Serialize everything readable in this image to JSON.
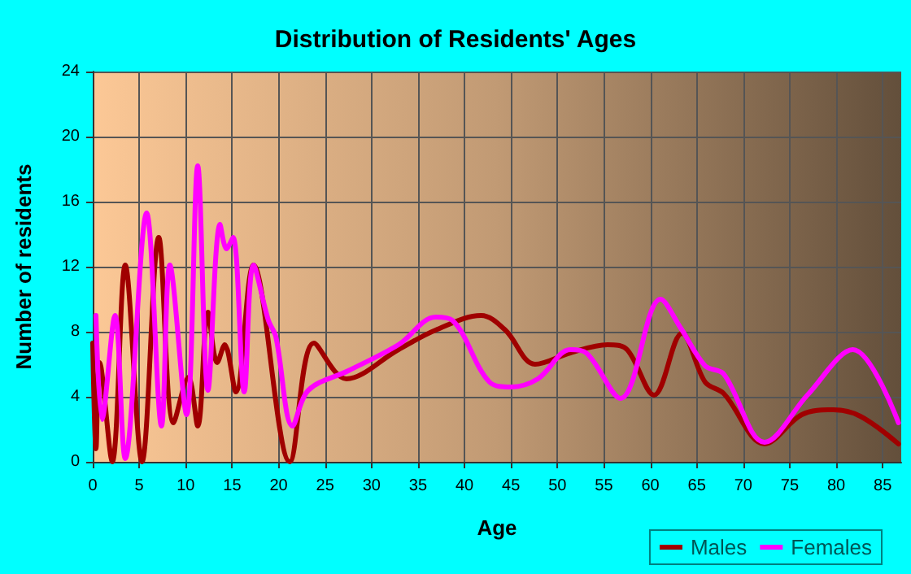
{
  "chart_data": {
    "type": "line",
    "title": "Distribution of Residents' Ages",
    "xlabel": "Age",
    "ylabel": "Number of residents",
    "xlim": [
      0,
      87
    ],
    "xticks": [
      0,
      5,
      10,
      15,
      20,
      25,
      30,
      35,
      40,
      45,
      50,
      55,
      60,
      65,
      70,
      75,
      80,
      85
    ],
    "ylim": [
      0,
      24
    ],
    "yticks": [
      0,
      4,
      8,
      12,
      16,
      20,
      24
    ],
    "grid": true,
    "legend": "bottom right",
    "marker": "none",
    "line_style": "solid",
    "series": [
      {
        "name": "Males",
        "color": "#a00000",
        "x": [
          0,
          0.35,
          0.75,
          2.1,
          3.5,
          5.3,
          7.1,
          8.7,
          10.3,
          11.3,
          12.4,
          13.4,
          14.2,
          15.4,
          17.3,
          21.2,
          23.8,
          27.3,
          32.9,
          36.9,
          41.8,
          44.4,
          47.6,
          51.4,
          55.4,
          57.5,
          60.4,
          63.4,
          65.9,
          67.9,
          72.3,
          76.3,
          79.7,
          82.6,
          86.7
        ],
        "values": [
          7.3,
          0.8,
          6.1,
          0,
          12.1,
          0,
          13.8,
          2.4,
          5.2,
          2.2,
          9.2,
          6.1,
          7.2,
          4.3,
          12.1,
          0,
          7.3,
          5.1,
          6.9,
          8.1,
          9.0,
          8.1,
          6.0,
          6.7,
          7.2,
          6.9,
          4.1,
          7.9,
          4.9,
          4.2,
          1.1,
          2.9,
          3.2,
          2.8,
          1.1
        ]
      },
      {
        "name": "Females",
        "color": "#ff00ff",
        "x": [
          0.35,
          1.0,
          2.4,
          3.5,
          5.8,
          7.4,
          8.3,
          10.1,
          11.3,
          12.4,
          13.7,
          14.4,
          15.1,
          16.3,
          17.3,
          18.9,
          19.7,
          21.5,
          23.2,
          27.5,
          32.9,
          36.9,
          38.7,
          42.7,
          45,
          47.9,
          51.4,
          53.1,
          56.8,
          61.1,
          63.3,
          65.9,
          67.9,
          72.3,
          76.9,
          81.8,
          86.7
        ],
        "values": [
          9.0,
          2.6,
          9.0,
          0.2,
          15.3,
          2.2,
          12.1,
          2.9,
          18.2,
          4.4,
          14.6,
          13.1,
          13.8,
          4.3,
          12.1,
          8.7,
          7.7,
          2.2,
          4.4,
          5.6,
          7.2,
          8.9,
          8.7,
          4.9,
          4.6,
          5.1,
          6.9,
          6.7,
          3.9,
          10.0,
          8.2,
          5.9,
          5.4,
          1.2,
          4.1,
          6.9,
          2.4
        ]
      }
    ]
  }
}
